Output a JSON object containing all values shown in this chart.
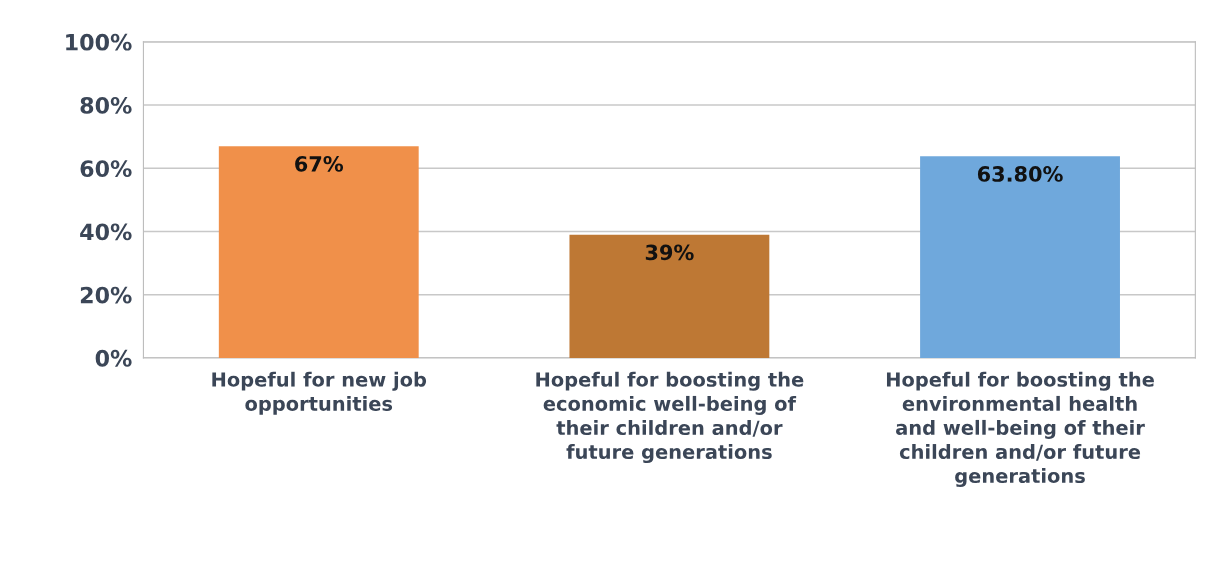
{
  "chart_data": {
    "type": "bar",
    "categories": [
      "Hopeful for new job\nopportunities",
      "Hopeful for boosting the\neconomic well-being of\ntheir children and/or\nfuture generations",
      "Hopeful for boosting the\nenvironmental health\nand well-being of their\nchildren and/or future\ngenerations"
    ],
    "values": [
      67,
      39,
      63.8
    ],
    "colors": [
      "#f0904a",
      "#be7834",
      "#6fa8dc"
    ],
    "value_labels": [
      "67%",
      "39%",
      "63.80%"
    ],
    "ylim": [
      0,
      100
    ],
    "yticks": [
      {
        "value": 0,
        "label": "0%"
      },
      {
        "value": 20,
        "label": "20%"
      },
      {
        "value": 40,
        "label": "40%"
      },
      {
        "value": 60,
        "label": "60%"
      },
      {
        "value": 80,
        "label": "80%"
      },
      {
        "value": 100,
        "label": "100%"
      }
    ],
    "grid": "y",
    "legend": false
  }
}
